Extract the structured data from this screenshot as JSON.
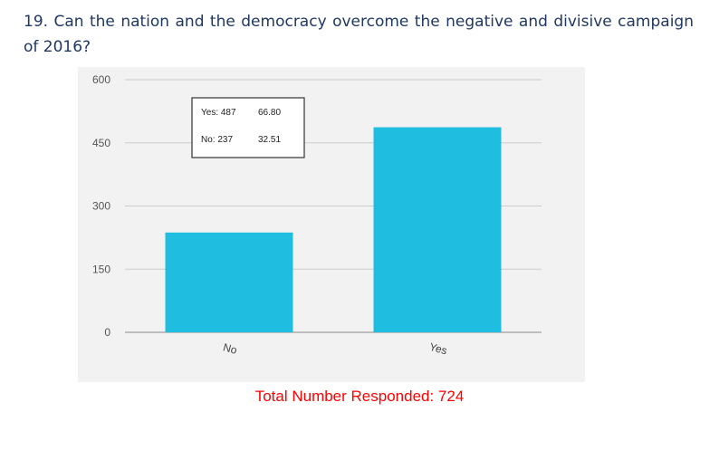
{
  "question": {
    "number": "19.",
    "text": "Can the nation and the democracy overcome the negative and divisive campaign of 2016?"
  },
  "chart_data": {
    "type": "bar",
    "categories": [
      "No",
      "Yes"
    ],
    "values": [
      237,
      487
    ],
    "ylim": [
      0,
      600
    ],
    "yticks": [
      0,
      150,
      300,
      450,
      600
    ],
    "grid": true,
    "bar_color": "#1fbde0",
    "legend_box": {
      "rows": [
        {
          "label": "Yes: 487",
          "value": "66.80"
        },
        {
          "label": "No: 237",
          "value": "32.51"
        }
      ]
    }
  },
  "footer": {
    "total_label": "Total Number Responded: 724",
    "color": "#ff0000"
  }
}
